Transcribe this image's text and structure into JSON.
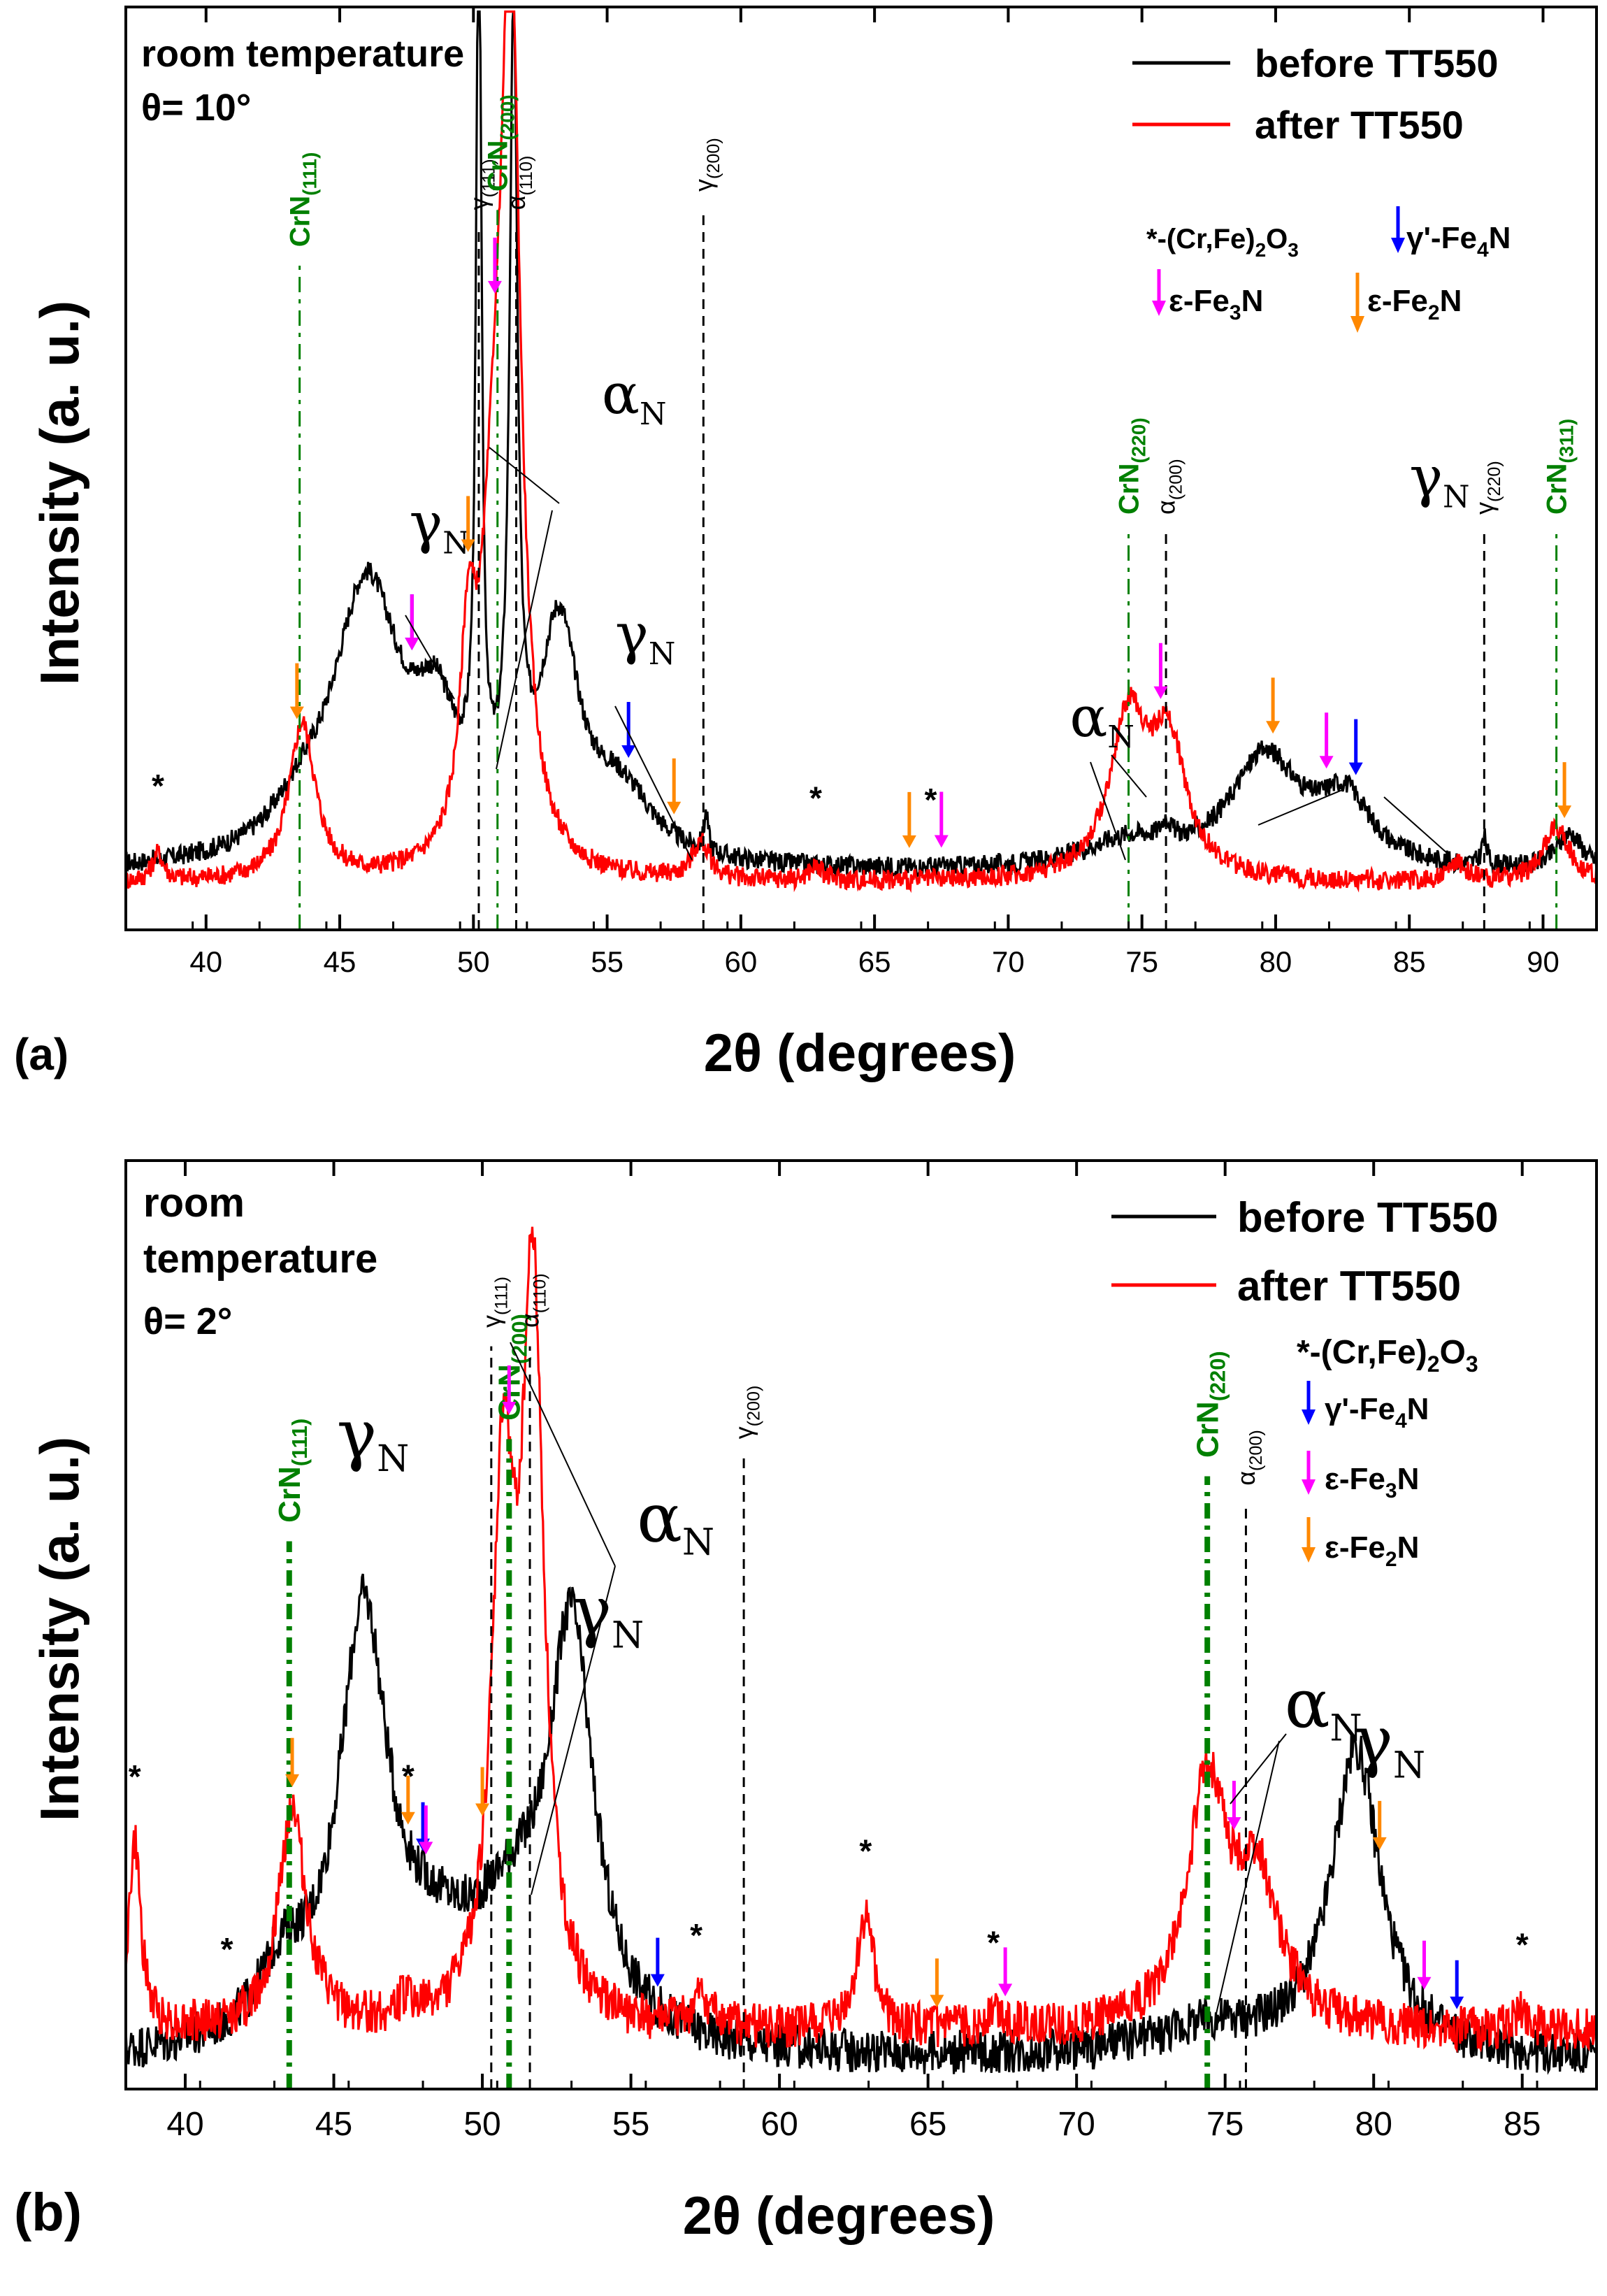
{
  "colors": {
    "before": "#000000",
    "after": "#ff0000",
    "crn": "#008000",
    "blue": "#0000ff",
    "magenta": "#ff00ff",
    "orange": "#ff8800"
  },
  "chart_data": [
    {
      "type": "line",
      "panel_label": "(a)",
      "xlabel": "2θ (degrees)",
      "ylabel": "Intensity (a. u.)",
      "xlim": [
        37,
        92
      ],
      "ylim": [
        0,
        100
      ],
      "xticks": [
        40,
        45,
        50,
        55,
        60,
        65,
        70,
        75,
        80,
        85,
        90
      ],
      "conditions": [
        "room temperature",
        "θ= 10°"
      ],
      "legend": [
        "before TT550",
        "after TT550"
      ],
      "phase_legend": [
        "*-(Cr,Fe)2O3",
        "γ'-Fe4N",
        "ε-Fe3N",
        "ε-Fe2N"
      ],
      "series": [
        {
          "name": "before TT550",
          "baseline": 6,
          "peaks": [
            [
              43.5,
              3,
              1.2
            ],
            [
              46.0,
              30,
              1.6
            ],
            [
              48.6,
              12,
              1.0
            ],
            [
              50.2,
              98,
              0.12
            ],
            [
              51.5,
              85,
              0.18
            ],
            [
              53.2,
              24,
              0.9
            ],
            [
              55.5,
              7,
              1.5
            ],
            [
              58.7,
              4,
              0.1
            ],
            [
              74.5,
              3,
              2.0
            ],
            [
              75.9,
              2,
              0.2
            ],
            [
              79.6,
              12,
              1.6
            ],
            [
              82.6,
              7,
              1.2
            ],
            [
              87.8,
              3,
              0.12
            ],
            [
              91.0,
              4,
              0.6
            ]
          ]
        },
        {
          "name": "after TT550",
          "baseline": 5,
          "peaks": [
            [
              38.2,
              3,
              0.25
            ],
            [
              43.6,
              17,
              0.6
            ],
            [
              49.8,
              20,
              0.35
            ],
            [
              50.8,
              30,
              0.6
            ],
            [
              51.4,
              90,
              0.42
            ],
            [
              58.5,
              4,
              0.4
            ],
            [
              62.8,
              1.5,
              0.3
            ],
            [
              74.5,
              17,
              0.85
            ],
            [
              76.0,
              14,
              0.8
            ],
            [
              86.8,
              2,
              0.4
            ],
            [
              90.5,
              6,
              0.6
            ]
          ]
        }
      ],
      "reference_lines": [
        {
          "label": "CrN(111)",
          "sub": "(111)",
          "x": 43.5,
          "kind": "crn",
          "label_y": 90
        },
        {
          "label": "γ(111)",
          "sub": "(111)",
          "x": 50.2,
          "kind": "phase",
          "label_y": 94
        },
        {
          "label": "CrN(200)",
          "sub": "(200)",
          "x": 50.9,
          "kind": "crn",
          "label_y": 96
        },
        {
          "label": "α(110)",
          "sub": "(110)",
          "x": 51.6,
          "kind": "phase",
          "label_y": 94
        },
        {
          "label": "γ(200)",
          "sub": "(200)",
          "x": 58.6,
          "kind": "phase",
          "label_y": 96
        },
        {
          "label": "CrN(220)",
          "sub": "(220)",
          "x": 74.5,
          "kind": "crn",
          "label_y": 61
        },
        {
          "label": "α(200)",
          "sub": "(200)",
          "x": 75.9,
          "kind": "phase",
          "label_y": 61
        },
        {
          "label": "γ(220)",
          "sub": "(220)",
          "x": 87.8,
          "kind": "phase",
          "label_y": 61
        },
        {
          "label": "CrN(311)",
          "sub": "(311)",
          "x": 90.5,
          "kind": "crn",
          "label_y": 61
        }
      ],
      "annotations": [
        {
          "text": "γ",
          "sub": "N",
          "x": 47.6,
          "y": 42
        },
        {
          "text": "α",
          "sub": "N",
          "x": 54.8,
          "y": 56
        },
        {
          "text": "γ",
          "sub": "N",
          "x": 55.3,
          "y": 30
        },
        {
          "text": "α",
          "sub": "N",
          "x": 72.3,
          "y": 21
        },
        {
          "text": "γ",
          "sub": "N",
          "x": 85.0,
          "y": 47
        }
      ],
      "stars": [
        38.2,
        62.8,
        67.1
      ],
      "arrows": [
        {
          "x": 43.4,
          "color": "orange"
        },
        {
          "x": 47.7,
          "color": "blue"
        },
        {
          "x": 47.7,
          "color": "magenta"
        },
        {
          "x": 49.8,
          "color": "orange"
        },
        {
          "x": 50.8,
          "color": "magenta"
        },
        {
          "x": 55.8,
          "color": "blue"
        },
        {
          "x": 57.5,
          "color": "orange"
        },
        {
          "x": 66.3,
          "color": "orange"
        },
        {
          "x": 67.5,
          "color": "magenta"
        },
        {
          "x": 75.7,
          "color": "magenta"
        },
        {
          "x": 79.9,
          "color": "orange"
        },
        {
          "x": 81.9,
          "color": "magenta"
        },
        {
          "x": 83.0,
          "color": "blue"
        },
        {
          "x": 90.8,
          "color": "orange"
        }
      ]
    },
    {
      "type": "line",
      "panel_label": "(b)",
      "xlabel": "2θ (degrees)",
      "ylabel": "Intensity (a. u.)",
      "xlim": [
        38,
        87.5
      ],
      "ylim": [
        0,
        100
      ],
      "xticks": [
        40,
        45,
        50,
        55,
        60,
        65,
        70,
        75,
        80,
        85
      ],
      "conditions": [
        "room",
        "temperature",
        "θ= 2°"
      ],
      "legend": [
        "before TT550",
        "after TT550"
      ],
      "phase_legend": [
        "*-(Cr,Fe)2O3",
        "γ'-Fe4N",
        "ε-Fe3N",
        "ε-Fe2N"
      ],
      "series": [
        {
          "name": "before TT550",
          "baseline": 3,
          "peaks": [
            [
              43.3,
              7,
              1.0
            ],
            [
              46.0,
              45,
              1.0
            ],
            [
              48.3,
              7,
              1.6
            ],
            [
              51.0,
              12,
              1.8
            ],
            [
              53.0,
              42,
              0.9
            ],
            [
              74.5,
              3,
              2.5
            ],
            [
              79.4,
              33,
              1.0
            ]
          ]
        },
        {
          "name": "after TT550",
          "baseline": 6,
          "peaks": [
            [
              38.3,
              20,
              0.25
            ],
            [
              43.6,
              24,
              0.55
            ],
            [
              47.4,
              2,
              0.3
            ],
            [
              50.7,
              55,
              0.45
            ],
            [
              51.7,
              77,
              0.45
            ],
            [
              57.4,
              3,
              0.4
            ],
            [
              62.9,
              12,
              0.35
            ],
            [
              67.3,
              2,
              0.4
            ],
            [
              74.4,
              26,
              0.8
            ],
            [
              76.1,
              15,
              0.9
            ],
            [
              85.0,
              2,
              0.4
            ]
          ]
        }
      ],
      "reference_lines": [
        {
          "label": "CrN(111)",
          "sub": "(111)",
          "x": 43.5,
          "kind": "crn",
          "label_y": 77
        },
        {
          "label": "γ(111)",
          "sub": "(111)",
          "x": 50.3,
          "kind": "phase",
          "label_y": 98
        },
        {
          "label": "CrN(200)",
          "sub": "(200)",
          "x": 50.9,
          "kind": "crn",
          "label_y": 88
        },
        {
          "label": "α(110)",
          "sub": "(110)",
          "x": 51.6,
          "kind": "phase",
          "label_y": 98
        },
        {
          "label": "γ(200)",
          "sub": "(200)",
          "x": 58.8,
          "kind": "phase",
          "label_y": 86
        },
        {
          "label": "CrN(220)",
          "sub": "(220)",
          "x": 74.4,
          "kind": "crn",
          "label_y": 84
        },
        {
          "label": "α(200)",
          "sub": "(200)",
          "x": 75.7,
          "kind": "phase",
          "label_y": 81
        }
      ],
      "annotations": [
        {
          "text": "γ",
          "sub": "N",
          "x": 45.1,
          "y": 68
        },
        {
          "text": "α",
          "sub": "N",
          "x": 55.2,
          "y": 59
        },
        {
          "text": "γ",
          "sub": "N",
          "x": 53.0,
          "y": 49
        },
        {
          "text": "α",
          "sub": "N",
          "x": 77.0,
          "y": 39
        },
        {
          "text": "γ",
          "sub": "N",
          "x": 79.3,
          "y": 35
        }
      ],
      "stars": [
        38.3,
        41.4,
        47.5,
        57.2,
        62.9,
        67.2,
        85.0
      ],
      "arrows": [
        {
          "x": 43.6,
          "color": "orange"
        },
        {
          "x": 47.5,
          "color": "orange"
        },
        {
          "x": 48.0,
          "color": "blue"
        },
        {
          "x": 48.1,
          "color": "magenta"
        },
        {
          "x": 50.0,
          "color": "orange"
        },
        {
          "x": 50.9,
          "color": "magenta"
        },
        {
          "x": 55.9,
          "color": "blue"
        },
        {
          "x": 65.3,
          "color": "orange"
        },
        {
          "x": 67.6,
          "color": "magenta"
        },
        {
          "x": 75.3,
          "color": "magenta"
        },
        {
          "x": 80.2,
          "color": "orange"
        },
        {
          "x": 81.7,
          "color": "magenta"
        },
        {
          "x": 82.8,
          "color": "blue"
        }
      ]
    }
  ]
}
